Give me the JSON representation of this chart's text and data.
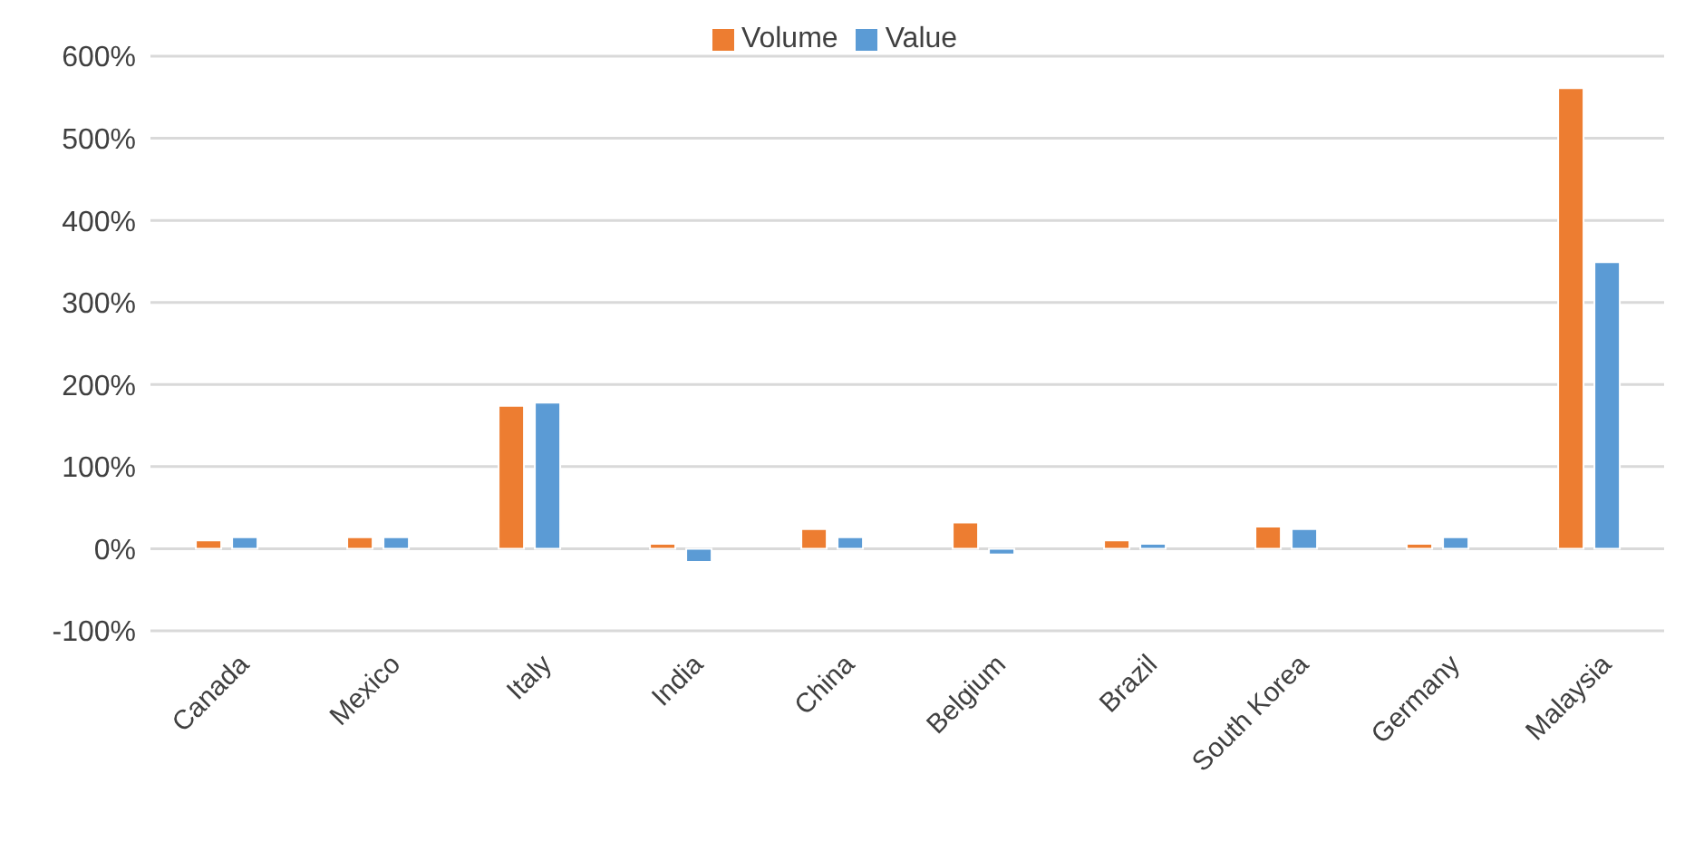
{
  "chart_data": {
    "type": "bar",
    "categories": [
      "Canada",
      "Mexico",
      "Italy",
      "India",
      "China",
      "Belgium",
      "Brazil",
      "South Korea",
      "Germany",
      "Malaysia"
    ],
    "series": [
      {
        "name": "Volume",
        "color": "#ed7d31",
        "values": [
          10,
          14,
          174,
          6,
          24,
          32,
          10,
          27,
          6,
          561
        ]
      },
      {
        "name": "Value",
        "color": "#5b9bd5",
        "values": [
          14,
          14,
          178,
          -16,
          14,
          -7,
          6,
          24,
          14,
          349
        ]
      }
    ],
    "ylim": [
      -100,
      600
    ],
    "yticks": [
      {
        "value": -100,
        "label": "-100%"
      },
      {
        "value": 0,
        "label": "0%"
      },
      {
        "value": 100,
        "label": "100%"
      },
      {
        "value": 200,
        "label": "200%"
      },
      {
        "value": 300,
        "label": "300%"
      },
      {
        "value": 400,
        "label": "400%"
      },
      {
        "value": 500,
        "label": "500%"
      },
      {
        "value": 600,
        "label": "600%"
      }
    ],
    "grid": "y",
    "legend": "top"
  }
}
